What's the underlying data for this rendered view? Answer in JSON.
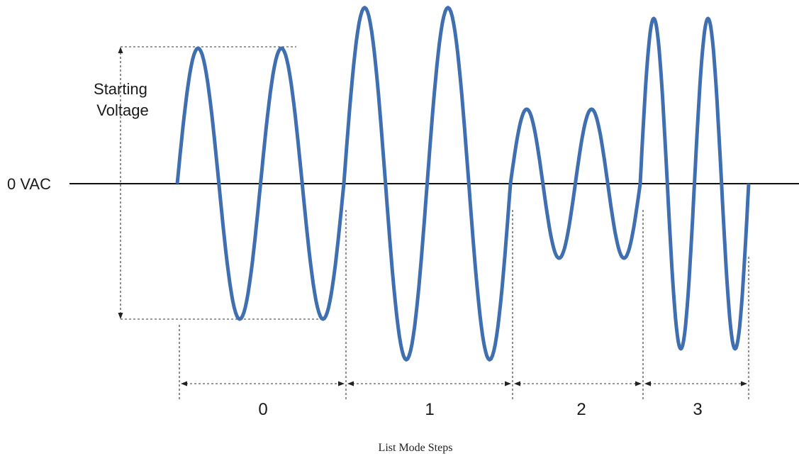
{
  "diagram": {
    "starting_voltage_label": [
      "Starting",
      "Voltage"
    ],
    "zero_axis_label": "0 VAC",
    "footer_caption": "List Mode Steps",
    "wave_color": "#3f6fb1",
    "axis_color": "#111111",
    "steps": [
      {
        "label": "0",
        "cycles": 2,
        "relative_amplitude": 1.0
      },
      {
        "label": "1",
        "cycles": 2,
        "relative_amplitude": 1.3
      },
      {
        "label": "2",
        "cycles": 2,
        "relative_amplitude": 0.55
      },
      {
        "label": "3",
        "cycles": 2,
        "relative_amplitude": 1.22
      }
    ]
  }
}
